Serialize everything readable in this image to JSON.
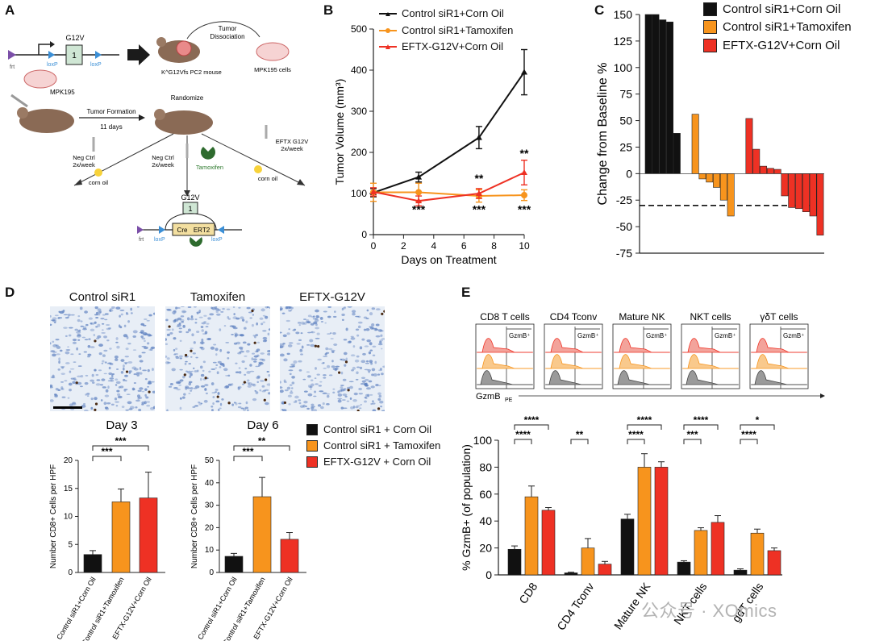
{
  "panels": {
    "a": "A",
    "b": "B",
    "c": "C",
    "d": "D",
    "e": "E"
  },
  "colors": {
    "black": "#111111",
    "orange": "#f7941d",
    "red": "#ee3124"
  },
  "schematic": {
    "gene_label": "G12V",
    "box_number": "1",
    "frt": "frt",
    "loxp": "loxP",
    "mouse_label": "K^G12Vfs PC2 mouse",
    "tumor_dissociation": [
      "Tumor",
      "Dissociation"
    ],
    "mpk_cells": "MPK195 cells",
    "mpk195": "MPK195",
    "tumor_formation": "Tumor Formation",
    "days": "11 days",
    "randomize": "Randomize",
    "neg_ctrl_left": [
      "Neg Ctrl",
      "2x/week"
    ],
    "neg_ctrl_mid": [
      "Neg Ctrl",
      "2x/week"
    ],
    "eftx": [
      "EFTX G12V",
      "2x/week"
    ],
    "tamoxifen": "Tamoxifen",
    "corn_oil": "corn oil",
    "cre": "Cre",
    "ert2": "ERT2"
  },
  "chart_data": [
    {
      "id": "B",
      "type": "line",
      "ylabel": "Tumor Volume (mm³)",
      "xlabel": "Days on Treatment",
      "xlim": [
        0,
        10
      ],
      "ylim": [
        0,
        500
      ],
      "xticks": [
        0,
        2,
        4,
        6,
        8,
        10
      ],
      "yticks": [
        0,
        100,
        200,
        300,
        400,
        500
      ],
      "series": [
        {
          "name": "Control siR1+Corn Oil",
          "color": "#111111",
          "x": [
            0,
            3,
            7,
            10
          ],
          "y": [
            102,
            140,
            236,
            395
          ],
          "err": [
            10,
            12,
            27,
            55
          ]
        },
        {
          "name": "Control siR1+Tamoxifen",
          "color": "#f7941d",
          "x": [
            0,
            3,
            7,
            10
          ],
          "y": [
            103,
            103,
            94,
            96
          ],
          "err": [
            22,
            22,
            15,
            13
          ]
        },
        {
          "name": "EFTX-G12V+Corn Oil",
          "color": "#ee3124",
          "x": [
            0,
            3,
            7,
            10
          ],
          "y": [
            104,
            82,
            100,
            151
          ],
          "err": [
            10,
            12,
            12,
            30
          ]
        }
      ],
      "annotations": [
        {
          "text": "***",
          "x": 3,
          "y": 52
        },
        {
          "text": "**",
          "x": 7,
          "y": 127
        },
        {
          "text": "***",
          "x": 7,
          "y": 52
        },
        {
          "text": "**",
          "x": 10,
          "y": 188
        },
        {
          "text": "***",
          "x": 10,
          "y": 52
        }
      ]
    },
    {
      "id": "C",
      "type": "bar",
      "ylabel": "Change from Baseline %",
      "ylim": [
        -75,
        150
      ],
      "yticks": [
        -75,
        -50,
        -25,
        0,
        25,
        50,
        75,
        100,
        125,
        150
      ],
      "reference_line": -30,
      "legend": [
        "Control siR1+Corn Oil",
        "Control siR1+Tamoxifen",
        "EFTX-G12V+Corn Oil"
      ],
      "series": [
        {
          "name": "Control siR1+Corn Oil",
          "color": "#111111",
          "values": [
            150,
            150,
            145,
            143,
            38
          ]
        },
        {
          "name": "Control siR1+Tamoxifen",
          "color": "#f7941d",
          "values": [
            56,
            -5,
            -8,
            -13,
            -25,
            -40
          ]
        },
        {
          "name": "EFTX-G12V+Corn Oil",
          "color": "#ee3124",
          "values": [
            52,
            23,
            7,
            5,
            4,
            -21,
            -32,
            -33,
            -36,
            -40,
            -58
          ]
        }
      ]
    },
    {
      "id": "D-day3",
      "type": "bar",
      "title": "Day 3",
      "ylabel": "Number CD8+ Cells per HPF",
      "ylim": [
        0,
        20
      ],
      "yticks": [
        0,
        5,
        10,
        15,
        20
      ],
      "categories": [
        "Control siR1+Corn Oil",
        "Control siR1+Tamoxifen",
        "EFTX-G12V+Corn Oil"
      ],
      "values": [
        3.2,
        12.6,
        13.3
      ],
      "err": [
        0.7,
        2.3,
        4.6
      ],
      "colors": [
        "#111111",
        "#f7941d",
        "#ee3124"
      ],
      "significance": [
        {
          "text": "***",
          "from": 0,
          "to": 1,
          "level": 1
        },
        {
          "text": "***",
          "from": 0,
          "to": 2,
          "level": 2
        }
      ]
    },
    {
      "id": "D-day6",
      "type": "bar",
      "title": "Day 6",
      "ylabel": "Number CD8+ Cells per HPF",
      "ylim": [
        0,
        50
      ],
      "yticks": [
        0,
        10,
        20,
        30,
        40,
        50
      ],
      "categories": [
        "Control siR1+Corn Oil",
        "Control siR1+Tamoxifen",
        "EFTX-G12V+Corn Oil"
      ],
      "values": [
        7.2,
        33.8,
        14.8
      ],
      "err": [
        1.3,
        8.6,
        3.0
      ],
      "colors": [
        "#111111",
        "#f7941d",
        "#ee3124"
      ],
      "significance": [
        {
          "text": "***",
          "from": 0,
          "to": 1,
          "level": 1
        },
        {
          "text": "**",
          "from": 0,
          "to": 2,
          "level": 2
        }
      ]
    },
    {
      "id": "E",
      "type": "bar",
      "ylabel": "% GzmB+ (of population)",
      "ylim": [
        0,
        100
      ],
      "yticks": [
        0,
        20,
        40,
        60,
        80,
        100
      ],
      "categories": [
        "CD8",
        "CD4 Tconv",
        "Mature NK",
        "NKT cells",
        "gdT cells"
      ],
      "series": [
        {
          "name": "Control siR1 + Corn Oil",
          "color": "#111111",
          "values": [
            19,
            1.5,
            41.5,
            9.5,
            3.5
          ],
          "err": [
            2.5,
            0.5,
            3.5,
            1,
            1
          ]
        },
        {
          "name": "Control siR1 + Tamoxifen",
          "color": "#f7941d",
          "values": [
            58,
            20,
            80,
            33,
            31
          ],
          "err": [
            8,
            7,
            10,
            2,
            3
          ]
        },
        {
          "name": "EFTX-G12V + Corn Oil",
          "color": "#ee3124",
          "values": [
            48,
            8,
            80,
            39,
            18
          ],
          "err": [
            2,
            2,
            4,
            5,
            2
          ]
        }
      ],
      "significance": [
        {
          "text": "****",
          "group": 0,
          "from": 0,
          "to": 1,
          "level": 1
        },
        {
          "text": "****",
          "group": 0,
          "from": 0,
          "to": 2,
          "level": 2
        },
        {
          "text": "**",
          "group": 1,
          "from": 0,
          "to": 1,
          "level": 1
        },
        {
          "text": "****",
          "group": 2,
          "from": 0,
          "to": 1,
          "level": 1
        },
        {
          "text": "****",
          "group": 2,
          "from": 0,
          "to": 2,
          "level": 2
        },
        {
          "text": "***",
          "group": 3,
          "from": 0,
          "to": 1,
          "level": 1
        },
        {
          "text": "****",
          "group": 3,
          "from": 0,
          "to": 2,
          "level": 2
        },
        {
          "text": "****",
          "group": 4,
          "from": 0,
          "to": 1,
          "level": 1
        },
        {
          "text": "*",
          "group": 4,
          "from": 0,
          "to": 2,
          "level": 2
        }
      ]
    }
  ],
  "panel_d": {
    "micrograph_titles": [
      "Control siR1",
      "Tamoxifen",
      "EFTX-G12V"
    ],
    "legend": [
      "Control siR1 + Corn Oil",
      "Control siR1 + Tamoxifen",
      "EFTX-G12V + Corn Oil"
    ]
  },
  "panel_e": {
    "flow_titles": [
      "CD8 T cells",
      "CD4 Tconv",
      "Mature NK",
      "NKT cells",
      "γδT cells"
    ],
    "gate_label": "GzmB⁺",
    "axis_label": "GzmB",
    "axis_sub": "PE"
  },
  "watermark": "公众号 · XOmics"
}
